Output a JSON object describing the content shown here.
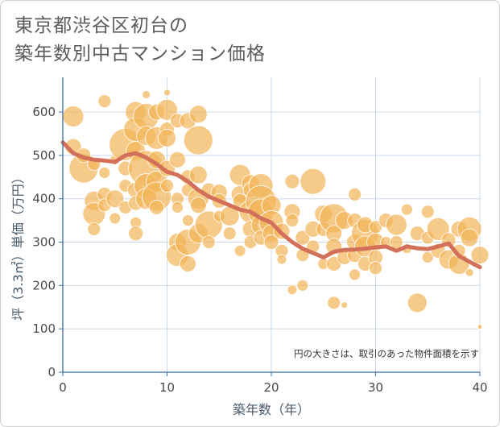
{
  "title_lines": [
    "東京都渋谷区初台の",
    "築年数別中古マンション価格"
  ],
  "note": "円の大きさは、取引のあった物件面積を示す",
  "colors": {
    "bubble": "#f2b55a",
    "line": "#d2705a",
    "grid": "#c8d8e8",
    "axis": "#3b6e9e"
  },
  "chart_data": {
    "type": "scatter",
    "xlabel": "築年数（年）",
    "ylabel": "坪（3.3㎡）単価（万円）",
    "xlim": [
      0,
      40
    ],
    "ylim": [
      0,
      680
    ],
    "x_ticks": [
      0,
      10,
      20,
      30,
      40
    ],
    "y_ticks": [
      0,
      100,
      200,
      300,
      400,
      500,
      600
    ],
    "grid": true,
    "points": [
      {
        "x": 1,
        "y": 590,
        "s": 13
      },
      {
        "x": 1,
        "y": 520,
        "s": 10
      },
      {
        "x": 2,
        "y": 470,
        "s": 18
      },
      {
        "x": 2,
        "y": 500,
        "s": 9
      },
      {
        "x": 3,
        "y": 480,
        "s": 8
      },
      {
        "x": 3,
        "y": 395,
        "s": 12
      },
      {
        "x": 3,
        "y": 365,
        "s": 14
      },
      {
        "x": 3,
        "y": 330,
        "s": 8
      },
      {
        "x": 4,
        "y": 625,
        "s": 8
      },
      {
        "x": 4,
        "y": 460,
        "s": 7
      },
      {
        "x": 4,
        "y": 410,
        "s": 9
      },
      {
        "x": 4,
        "y": 385,
        "s": 8
      },
      {
        "x": 5,
        "y": 400,
        "s": 11
      },
      {
        "x": 5,
        "y": 355,
        "s": 7
      },
      {
        "x": 5,
        "y": 490,
        "s": 6
      },
      {
        "x": 6,
        "y": 525,
        "s": 20
      },
      {
        "x": 6,
        "y": 470,
        "s": 9
      },
      {
        "x": 6,
        "y": 430,
        "s": 8
      },
      {
        "x": 6,
        "y": 380,
        "s": 8
      },
      {
        "x": 7,
        "y": 600,
        "s": 13
      },
      {
        "x": 7,
        "y": 560,
        "s": 15
      },
      {
        "x": 7,
        "y": 510,
        "s": 12
      },
      {
        "x": 7,
        "y": 420,
        "s": 10
      },
      {
        "x": 7,
        "y": 390,
        "s": 9
      },
      {
        "x": 7,
        "y": 345,
        "s": 7
      },
      {
        "x": 7,
        "y": 320,
        "s": 9
      },
      {
        "x": 8,
        "y": 590,
        "s": 16
      },
      {
        "x": 8,
        "y": 545,
        "s": 12
      },
      {
        "x": 8,
        "y": 470,
        "s": 22
      },
      {
        "x": 8,
        "y": 430,
        "s": 15
      },
      {
        "x": 8,
        "y": 400,
        "s": 13
      },
      {
        "x": 8,
        "y": 640,
        "s": 5
      },
      {
        "x": 9,
        "y": 600,
        "s": 10
      },
      {
        "x": 9,
        "y": 540,
        "s": 14
      },
      {
        "x": 9,
        "y": 490,
        "s": 11
      },
      {
        "x": 9,
        "y": 440,
        "s": 13
      },
      {
        "x": 9,
        "y": 405,
        "s": 18
      },
      {
        "x": 9,
        "y": 380,
        "s": 9
      },
      {
        "x": 10,
        "y": 605,
        "s": 13
      },
      {
        "x": 10,
        "y": 560,
        "s": 9
      },
      {
        "x": 10,
        "y": 540,
        "s": 11
      },
      {
        "x": 10,
        "y": 470,
        "s": 10
      },
      {
        "x": 10,
        "y": 430,
        "s": 8
      },
      {
        "x": 10,
        "y": 645,
        "s": 4
      },
      {
        "x": 11,
        "y": 580,
        "s": 9
      },
      {
        "x": 11,
        "y": 490,
        "s": 10
      },
      {
        "x": 11,
        "y": 400,
        "s": 8
      },
      {
        "x": 11,
        "y": 380,
        "s": 7
      },
      {
        "x": 11,
        "y": 300,
        "s": 11
      },
      {
        "x": 11,
        "y": 270,
        "s": 14
      },
      {
        "x": 12,
        "y": 580,
        "s": 10
      },
      {
        "x": 12,
        "y": 450,
        "s": 9
      },
      {
        "x": 12,
        "y": 420,
        "s": 8
      },
      {
        "x": 12,
        "y": 300,
        "s": 16
      },
      {
        "x": 12,
        "y": 250,
        "s": 10
      },
      {
        "x": 12,
        "y": 350,
        "s": 7
      },
      {
        "x": 13,
        "y": 595,
        "s": 11
      },
      {
        "x": 13,
        "y": 535,
        "s": 18
      },
      {
        "x": 13,
        "y": 455,
        "s": 11
      },
      {
        "x": 13,
        "y": 400,
        "s": 13
      },
      {
        "x": 13,
        "y": 385,
        "s": 10
      },
      {
        "x": 13,
        "y": 320,
        "s": 12
      },
      {
        "x": 14,
        "y": 420,
        "s": 9
      },
      {
        "x": 14,
        "y": 340,
        "s": 17
      },
      {
        "x": 14,
        "y": 300,
        "s": 8
      },
      {
        "x": 15,
        "y": 415,
        "s": 10
      },
      {
        "x": 15,
        "y": 395,
        "s": 9
      },
      {
        "x": 15,
        "y": 360,
        "s": 7
      },
      {
        "x": 16,
        "y": 360,
        "s": 12
      },
      {
        "x": 16,
        "y": 320,
        "s": 8
      },
      {
        "x": 17,
        "y": 455,
        "s": 13
      },
      {
        "x": 17,
        "y": 410,
        "s": 11
      },
      {
        "x": 17,
        "y": 395,
        "s": 9
      },
      {
        "x": 17,
        "y": 280,
        "s": 7
      },
      {
        "x": 18,
        "y": 435,
        "s": 11
      },
      {
        "x": 18,
        "y": 420,
        "s": 9
      },
      {
        "x": 18,
        "y": 370,
        "s": 14
      },
      {
        "x": 18,
        "y": 330,
        "s": 10
      },
      {
        "x": 18,
        "y": 300,
        "s": 8
      },
      {
        "x": 19,
        "y": 430,
        "s": 15
      },
      {
        "x": 19,
        "y": 395,
        "s": 19
      },
      {
        "x": 19,
        "y": 370,
        "s": 16
      },
      {
        "x": 19,
        "y": 340,
        "s": 12
      },
      {
        "x": 19,
        "y": 310,
        "s": 9
      },
      {
        "x": 20,
        "y": 385,
        "s": 12
      },
      {
        "x": 20,
        "y": 345,
        "s": 15
      },
      {
        "x": 20,
        "y": 320,
        "s": 11
      },
      {
        "x": 20,
        "y": 300,
        "s": 9
      },
      {
        "x": 21,
        "y": 325,
        "s": 10
      },
      {
        "x": 21,
        "y": 280,
        "s": 8
      },
      {
        "x": 21,
        "y": 260,
        "s": 6
      },
      {
        "x": 22,
        "y": 440,
        "s": 9
      },
      {
        "x": 22,
        "y": 370,
        "s": 10
      },
      {
        "x": 22,
        "y": 350,
        "s": 8
      },
      {
        "x": 22,
        "y": 190,
        "s": 6
      },
      {
        "x": 23,
        "y": 310,
        "s": 9
      },
      {
        "x": 23,
        "y": 270,
        "s": 8
      },
      {
        "x": 23,
        "y": 200,
        "s": 7
      },
      {
        "x": 24,
        "y": 440,
        "s": 16
      },
      {
        "x": 24,
        "y": 330,
        "s": 10
      },
      {
        "x": 24,
        "y": 290,
        "s": 8
      },
      {
        "x": 25,
        "y": 365,
        "s": 11
      },
      {
        "x": 25,
        "y": 330,
        "s": 9
      },
      {
        "x": 25,
        "y": 250,
        "s": 7
      },
      {
        "x": 26,
        "y": 355,
        "s": 18
      },
      {
        "x": 26,
        "y": 320,
        "s": 10
      },
      {
        "x": 26,
        "y": 290,
        "s": 10
      },
      {
        "x": 26,
        "y": 250,
        "s": 9
      },
      {
        "x": 26,
        "y": 160,
        "s": 8
      },
      {
        "x": 27,
        "y": 350,
        "s": 11
      },
      {
        "x": 27,
        "y": 265,
        "s": 9
      },
      {
        "x": 27,
        "y": 155,
        "s": 4
      },
      {
        "x": 28,
        "y": 410,
        "s": 8
      },
      {
        "x": 28,
        "y": 350,
        "s": 9
      },
      {
        "x": 28,
        "y": 300,
        "s": 10
      },
      {
        "x": 28,
        "y": 270,
        "s": 9
      },
      {
        "x": 28,
        "y": 225,
        "s": 7
      },
      {
        "x": 29,
        "y": 320,
        "s": 17
      },
      {
        "x": 29,
        "y": 290,
        "s": 13
      },
      {
        "x": 29,
        "y": 250,
        "s": 9
      },
      {
        "x": 29,
        "y": 340,
        "s": 10
      },
      {
        "x": 30,
        "y": 300,
        "s": 11
      },
      {
        "x": 30,
        "y": 265,
        "s": 9
      },
      {
        "x": 30,
        "y": 240,
        "s": 8
      },
      {
        "x": 30,
        "y": 335,
        "s": 8
      },
      {
        "x": 31,
        "y": 350,
        "s": 9
      },
      {
        "x": 31,
        "y": 300,
        "s": 7
      },
      {
        "x": 32,
        "y": 340,
        "s": 13
      },
      {
        "x": 32,
        "y": 300,
        "s": 8
      },
      {
        "x": 33,
        "y": 375,
        "s": 7
      },
      {
        "x": 33,
        "y": 285,
        "s": 6
      },
      {
        "x": 34,
        "y": 320,
        "s": 9
      },
      {
        "x": 34,
        "y": 160,
        "s": 12
      },
      {
        "x": 35,
        "y": 370,
        "s": 8
      },
      {
        "x": 35,
        "y": 310,
        "s": 8
      },
      {
        "x": 35,
        "y": 265,
        "s": 7
      },
      {
        "x": 36,
        "y": 330,
        "s": 14
      },
      {
        "x": 36,
        "y": 280,
        "s": 9
      },
      {
        "x": 37,
        "y": 260,
        "s": 12
      },
      {
        "x": 37,
        "y": 305,
        "s": 9
      },
      {
        "x": 38,
        "y": 330,
        "s": 10
      },
      {
        "x": 38,
        "y": 250,
        "s": 13
      },
      {
        "x": 38,
        "y": 280,
        "s": 8
      },
      {
        "x": 39,
        "y": 330,
        "s": 15
      },
      {
        "x": 39,
        "y": 310,
        "s": 11
      },
      {
        "x": 39,
        "y": 230,
        "s": 5
      },
      {
        "x": 40,
        "y": 105,
        "s": 3
      },
      {
        "x": 40,
        "y": 270,
        "s": 11
      }
    ],
    "trend": {
      "name": "",
      "x": [
        0,
        1,
        2,
        3,
        4,
        5,
        6,
        7,
        8,
        9,
        10,
        11,
        12,
        13,
        14,
        15,
        16,
        17,
        18,
        19,
        20,
        21,
        22,
        23,
        24,
        25,
        26,
        27,
        28,
        29,
        30,
        31,
        32,
        33,
        34,
        35,
        36,
        37,
        38,
        39,
        40
      ],
      "y": [
        530,
        505,
        495,
        490,
        488,
        485,
        500,
        505,
        495,
        480,
        462,
        455,
        440,
        420,
        405,
        395,
        385,
        375,
        370,
        355,
        345,
        320,
        300,
        285,
        275,
        265,
        278,
        282,
        283,
        285,
        288,
        290,
        280,
        290,
        286,
        284,
        290,
        297,
        268,
        255,
        242
      ]
    }
  }
}
